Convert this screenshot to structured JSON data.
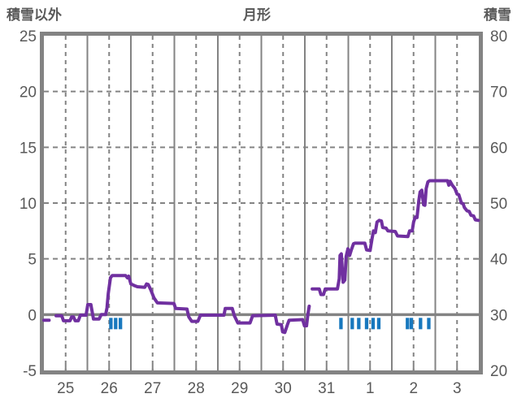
{
  "chart_data": {
    "type": "line",
    "title": "月形",
    "left_axis": {
      "title": "積雪以外",
      "min": -5,
      "max": 25,
      "ticks": [
        "25",
        "20",
        "15",
        "10",
        "5",
        "0",
        "-5"
      ]
    },
    "right_axis": {
      "title": "積雪",
      "min": 20,
      "max": 80,
      "ticks": [
        "80",
        "70",
        "60",
        "50",
        "40",
        "30",
        "20"
      ]
    },
    "x_axis": {
      "day_labels": [
        "25",
        "26",
        "27",
        "28",
        "29",
        "30",
        "31",
        "1",
        "2",
        "3"
      ],
      "day_start": 25,
      "day_span": 10,
      "grid": {
        "solid_at_day_boundaries": true,
        "dashed_at_day_noons": true
      }
    },
    "grid": {
      "horizontal_dashed_at_left_values": [
        5,
        10,
        15,
        20
      ],
      "zero_line_solid": true
    },
    "colors": {
      "line": "#7030a0",
      "event_bar": "#1878be",
      "grid": "#838383",
      "frame": "#838383",
      "text": "#595959",
      "background": "#ffffff"
    },
    "series": [
      {
        "name": "snow-depth-line",
        "axis": "left",
        "color": "#7030a0",
        "segments": [
          [
            [
              25.0,
              -0.5
            ],
            [
              25.12,
              -0.5
            ]
          ],
          [
            [
              25.28,
              -0.1
            ],
            [
              25.41,
              -0.1
            ],
            [
              25.45,
              -0.55
            ],
            [
              25.6,
              -0.55
            ],
            [
              25.64,
              -0.2
            ],
            [
              25.68,
              -0.2
            ],
            [
              25.72,
              -0.55
            ],
            [
              25.79,
              -0.55
            ],
            [
              25.84,
              -0.05
            ],
            [
              25.97,
              -0.05
            ],
            [
              26.01,
              0.9
            ],
            [
              26.08,
              0.9
            ],
            [
              26.14,
              -0.4
            ],
            [
              26.27,
              -0.4
            ],
            [
              26.32,
              0.0
            ],
            [
              26.42,
              0.0
            ],
            [
              26.45,
              0.6
            ],
            [
              26.48,
              1.9
            ],
            [
              26.53,
              3.3
            ],
            [
              26.57,
              3.5
            ],
            [
              26.88,
              3.5
            ],
            [
              26.92,
              3.3
            ],
            [
              26.95,
              3.45
            ],
            [
              27.0,
              2.75
            ],
            [
              27.08,
              2.6
            ],
            [
              27.15,
              2.5
            ],
            [
              27.32,
              2.45
            ],
            [
              27.36,
              2.75
            ],
            [
              27.4,
              2.7
            ],
            [
              27.46,
              2.2
            ],
            [
              27.53,
              1.5
            ],
            [
              27.61,
              1.05
            ],
            [
              27.99,
              1.0
            ],
            [
              28.03,
              0.55
            ],
            [
              28.29,
              0.5
            ],
            [
              28.33,
              -0.2
            ],
            [
              28.4,
              -0.6
            ],
            [
              28.54,
              -0.6
            ],
            [
              28.6,
              -0.05
            ],
            [
              29.14,
              -0.05
            ],
            [
              29.17,
              0.55
            ],
            [
              29.33,
              0.55
            ],
            [
              29.38,
              -0.1
            ],
            [
              29.46,
              -0.75
            ],
            [
              29.74,
              -0.75
            ],
            [
              29.8,
              -0.1
            ],
            [
              30.32,
              -0.05
            ],
            [
              30.36,
              -0.85
            ],
            [
              30.46,
              -0.9
            ],
            [
              30.49,
              -1.55
            ],
            [
              30.54,
              -1.6
            ],
            [
              30.6,
              -0.9
            ],
            [
              30.64,
              -0.5
            ],
            [
              30.95,
              -0.45
            ],
            [
              30.99,
              -1.0
            ],
            [
              31.04,
              -1.0
            ],
            [
              31.07,
              0.0
            ],
            [
              31.1,
              0.75
            ]
          ],
          [
            [
              31.17,
              2.3
            ],
            [
              31.33,
              2.3
            ],
            [
              31.37,
              1.8
            ],
            [
              31.43,
              1.8
            ],
            [
              31.47,
              2.3
            ],
            [
              31.75,
              2.3
            ],
            [
              31.79,
              3.2
            ],
            [
              31.81,
              5.3
            ],
            [
              31.84,
              5.45
            ],
            [
              31.88,
              2.9
            ],
            [
              31.92,
              3.1
            ],
            [
              31.95,
              5.2
            ],
            [
              31.99,
              5.9
            ],
            [
              32.03,
              5.3
            ],
            [
              32.07,
              5.8
            ],
            [
              32.12,
              6.35
            ],
            [
              32.15,
              6.4
            ],
            [
              32.38,
              6.4
            ],
            [
              32.42,
              5.8
            ],
            [
              32.5,
              5.75
            ],
            [
              32.55,
              6.9
            ],
            [
              32.58,
              7.5
            ],
            [
              32.62,
              7.35
            ],
            [
              32.66,
              8.3
            ],
            [
              32.71,
              8.45
            ],
            [
              32.76,
              8.4
            ],
            [
              32.79,
              7.8
            ],
            [
              32.87,
              7.75
            ],
            [
              32.91,
              7.5
            ],
            [
              33.08,
              7.45
            ],
            [
              33.13,
              7.05
            ],
            [
              33.37,
              7.0
            ],
            [
              33.41,
              7.5
            ],
            [
              33.47,
              7.5
            ],
            [
              33.5,
              8.3
            ],
            [
              33.54,
              8.75
            ],
            [
              33.58,
              8.7
            ],
            [
              33.62,
              10.2
            ],
            [
              33.65,
              11.0
            ],
            [
              33.69,
              11.15
            ],
            [
              33.73,
              9.85
            ],
            [
              33.76,
              9.8
            ],
            [
              33.79,
              11.3
            ],
            [
              33.83,
              11.9
            ],
            [
              33.87,
              12.0
            ],
            [
              34.28,
              12.0
            ],
            [
              34.31,
              11.6
            ],
            [
              34.34,
              11.95
            ],
            [
              34.39,
              11.6
            ],
            [
              34.45,
              11.3
            ],
            [
              34.5,
              10.8
            ],
            [
              34.54,
              10.75
            ],
            [
              34.6,
              10.0
            ],
            [
              34.64,
              9.95
            ],
            [
              34.67,
              9.6
            ],
            [
              34.73,
              9.3
            ],
            [
              34.78,
              9.25
            ],
            [
              34.82,
              8.9
            ],
            [
              34.88,
              8.85
            ],
            [
              34.92,
              8.5
            ],
            [
              34.99,
              8.45
            ]
          ]
        ]
      }
    ],
    "event_marks": {
      "name": "snowfall-event-bars",
      "color": "#1878be",
      "position": "below-zero-line",
      "days": [
        26.5,
        26.61,
        26.72,
        31.79,
        32.05,
        32.2,
        32.38,
        32.53,
        32.66,
        33.32,
        33.41,
        33.62,
        33.81
      ]
    }
  }
}
